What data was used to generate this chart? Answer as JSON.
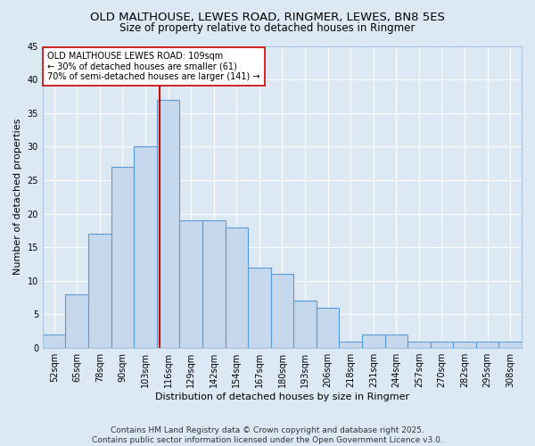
{
  "title": "OLD MALTHOUSE, LEWES ROAD, RINGMER, LEWES, BN8 5ES",
  "subtitle": "Size of property relative to detached houses in Ringmer",
  "xlabel": "Distribution of detached houses by size in Ringmer",
  "ylabel": "Number of detached properties",
  "bar_color": "#c5d8ed",
  "bar_edge_color": "#5b9bd5",
  "background_color": "#dce9f5",
  "plot_bg_color": "#dce9f5",
  "grid_color": "#ffffff",
  "categories": [
    "52sqm",
    "65sqm",
    "78sqm",
    "90sqm",
    "103sqm",
    "116sqm",
    "129sqm",
    "142sqm",
    "154sqm",
    "167sqm",
    "180sqm",
    "193sqm",
    "206sqm",
    "218sqm",
    "231sqm",
    "244sqm",
    "257sqm",
    "270sqm",
    "282sqm",
    "295sqm",
    "308sqm"
  ],
  "values": [
    2,
    8,
    17,
    27,
    30,
    37,
    19,
    19,
    18,
    12,
    11,
    7,
    6,
    1,
    2,
    2,
    1,
    1,
    1,
    1,
    1
  ],
  "ylim": [
    0,
    45
  ],
  "yticks": [
    0,
    5,
    10,
    15,
    20,
    25,
    30,
    35,
    40,
    45
  ],
  "vline_x": 4.615,
  "vline_color": "#cc0000",
  "annotation_text": "OLD MALTHOUSE LEWES ROAD: 109sqm\n← 30% of detached houses are smaller (61)\n70% of semi-detached houses are larger (141) →",
  "annotation_box_facecolor": "#ffffff",
  "annotation_box_edgecolor": "#cc0000",
  "footer_text": "Contains HM Land Registry data © Crown copyright and database right 2025.\nContains public sector information licensed under the Open Government Licence v3.0.",
  "title_fontsize": 9.5,
  "subtitle_fontsize": 8.5,
  "axis_label_fontsize": 8,
  "tick_fontsize": 7,
  "annotation_fontsize": 7,
  "footer_fontsize": 6.5
}
